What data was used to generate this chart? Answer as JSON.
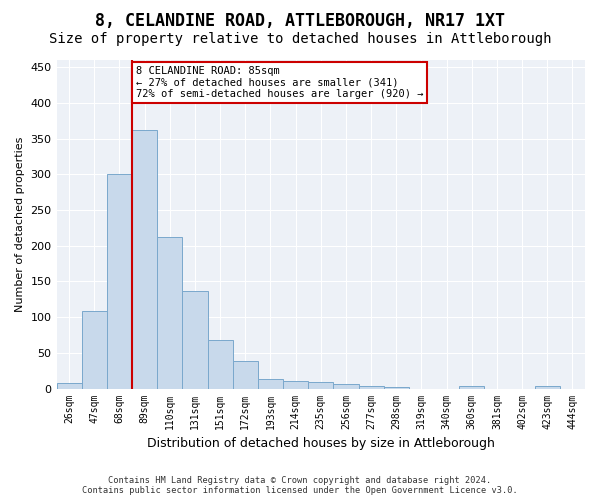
{
  "title": "8, CELANDINE ROAD, ATTLEBOROUGH, NR17 1XT",
  "subtitle": "Size of property relative to detached houses in Attleborough",
  "xlabel": "Distribution of detached houses by size in Attleborough",
  "ylabel": "Number of detached properties",
  "footer_line1": "Contains HM Land Registry data © Crown copyright and database right 2024.",
  "footer_line2": "Contains public sector information licensed under the Open Government Licence v3.0.",
  "bins": [
    "26sqm",
    "47sqm",
    "68sqm",
    "89sqm",
    "110sqm",
    "131sqm",
    "151sqm",
    "172sqm",
    "193sqm",
    "214sqm",
    "235sqm",
    "256sqm",
    "277sqm",
    "298sqm",
    "319sqm",
    "340sqm",
    "360sqm",
    "381sqm",
    "402sqm",
    "423sqm",
    "444sqm"
  ],
  "bar_values": [
    8,
    108,
    300,
    362,
    212,
    136,
    68,
    38,
    13,
    10,
    9,
    6,
    3,
    2,
    0,
    0,
    3,
    0,
    0,
    3,
    0
  ],
  "bar_color": "#c8d9eb",
  "bar_edge_color": "#7aa8cc",
  "marker_bin_index": 3,
  "marker_line_color": "#cc0000",
  "annotation_line1": "8 CELANDINE ROAD: 85sqm",
  "annotation_line2": "← 27% of detached houses are smaller (341)",
  "annotation_line3": "72% of semi-detached houses are larger (920) →",
  "annotation_box_color": "#ffffff",
  "annotation_border_color": "#cc0000",
  "ylim": [
    0,
    460
  ],
  "yticks": [
    0,
    50,
    100,
    150,
    200,
    250,
    300,
    350,
    400,
    450
  ],
  "bg_color": "#edf1f7",
  "title_fontsize": 12,
  "subtitle_fontsize": 10
}
